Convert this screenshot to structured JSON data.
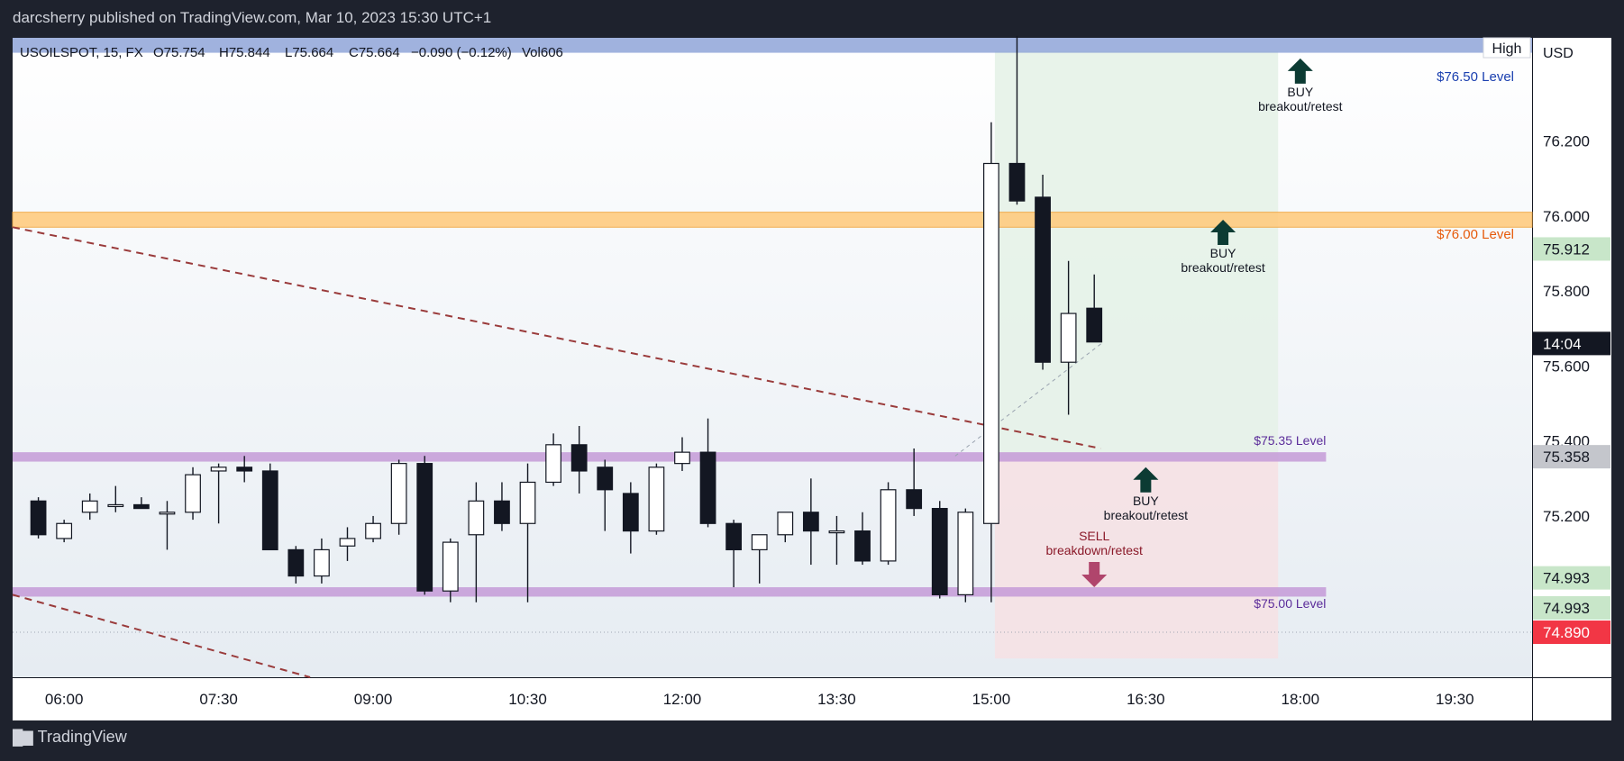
{
  "header": {
    "publisher_line": "darcsherry published on TradingView.com, Mar 10, 2023 15:30 UTC+1"
  },
  "footer": {
    "brand": "TradingView",
    "logo": "tradingview-logo-icon"
  },
  "legend": {
    "symbol": "USOILSPOT, 15, FX",
    "open": "O75.754",
    "high": "H75.844",
    "low": "L75.664",
    "close": "C75.664",
    "change": "−0.090 (−0.12%)",
    "volume": "Vol606"
  },
  "price_axis": {
    "currency": "USD",
    "high_label": "High"
  },
  "colors": {
    "bull_body": "#ffffff",
    "bear_body": "#131722",
    "wick": "#131722",
    "zone_orange": "#ffcc80",
    "zone_purple": "#c49ad7",
    "zone_blue": "#8fa4d8",
    "trend_line": "#9a3b3b",
    "arrow_green": "#0c3b33",
    "arrow_sell": "#b0456c",
    "label_blue": "#1a3faf",
    "label_orange": "#e65a0a",
    "label_purple": "#5b2c9a",
    "sell_text": "#8b1a2a",
    "projection_green": "#e6f2e8",
    "projection_red": "#f5e1e4"
  },
  "chart_data": {
    "type": "candlestick",
    "symbol": "USOILSPOT",
    "interval": "15",
    "y_range": [
      74.77,
      76.475
    ],
    "x_range": [
      "05:30",
      "20:15"
    ],
    "x_ticks": [
      "06:00",
      "07:30",
      "09:00",
      "10:30",
      "12:00",
      "13:30",
      "15:00",
      "16:30",
      "18:00",
      "19:30"
    ],
    "y_ticks": [
      76.2,
      76.0,
      75.8,
      75.6,
      75.4,
      75.2
    ],
    "candles": [
      {
        "t": "05:45",
        "o": 75.24,
        "h": 75.25,
        "l": 75.14,
        "c": 75.15
      },
      {
        "t": "06:00",
        "o": 75.14,
        "h": 75.19,
        "l": 75.13,
        "c": 75.18
      },
      {
        "t": "06:15",
        "o": 75.21,
        "h": 75.26,
        "l": 75.19,
        "c": 75.24
      },
      {
        "t": "06:30",
        "o": 75.23,
        "h": 75.28,
        "l": 75.21,
        "c": 75.23
      },
      {
        "t": "06:45",
        "o": 75.23,
        "h": 75.25,
        "l": 75.22,
        "c": 75.22
      },
      {
        "t": "07:00",
        "o": 75.21,
        "h": 75.24,
        "l": 75.11,
        "c": 75.21
      },
      {
        "t": "07:15",
        "o": 75.21,
        "h": 75.33,
        "l": 75.19,
        "c": 75.31
      },
      {
        "t": "07:30",
        "o": 75.32,
        "h": 75.34,
        "l": 75.18,
        "c": 75.33
      },
      {
        "t": "07:45",
        "o": 75.33,
        "h": 75.36,
        "l": 75.29,
        "c": 75.32
      },
      {
        "t": "08:00",
        "o": 75.32,
        "h": 75.34,
        "l": 75.11,
        "c": 75.11
      },
      {
        "t": "08:15",
        "o": 75.11,
        "h": 75.12,
        "l": 75.02,
        "c": 75.04
      },
      {
        "t": "08:30",
        "o": 75.04,
        "h": 75.14,
        "l": 75.02,
        "c": 75.11
      },
      {
        "t": "08:45",
        "o": 75.12,
        "h": 75.17,
        "l": 75.08,
        "c": 75.14
      },
      {
        "t": "09:00",
        "o": 75.14,
        "h": 75.2,
        "l": 75.13,
        "c": 75.18
      },
      {
        "t": "09:15",
        "o": 75.18,
        "h": 75.35,
        "l": 75.15,
        "c": 75.34
      },
      {
        "t": "09:30",
        "o": 75.34,
        "h": 75.36,
        "l": 74.99,
        "c": 75.0
      },
      {
        "t": "09:45",
        "o": 75.0,
        "h": 75.14,
        "l": 74.97,
        "c": 75.13
      },
      {
        "t": "10:00",
        "o": 75.15,
        "h": 75.29,
        "l": 74.97,
        "c": 75.24
      },
      {
        "t": "10:15",
        "o": 75.24,
        "h": 75.29,
        "l": 75.16,
        "c": 75.18
      },
      {
        "t": "10:30",
        "o": 75.18,
        "h": 75.34,
        "l": 74.97,
        "c": 75.29
      },
      {
        "t": "10:45",
        "o": 75.29,
        "h": 75.42,
        "l": 75.28,
        "c": 75.39
      },
      {
        "t": "11:00",
        "o": 75.39,
        "h": 75.44,
        "l": 75.26,
        "c": 75.32
      },
      {
        "t": "11:15",
        "o": 75.33,
        "h": 75.35,
        "l": 75.16,
        "c": 75.27
      },
      {
        "t": "11:30",
        "o": 75.26,
        "h": 75.29,
        "l": 75.1,
        "c": 75.16
      },
      {
        "t": "11:45",
        "o": 75.16,
        "h": 75.34,
        "l": 75.15,
        "c": 75.33
      },
      {
        "t": "12:00",
        "o": 75.34,
        "h": 75.41,
        "l": 75.32,
        "c": 75.37
      },
      {
        "t": "12:15",
        "o": 75.37,
        "h": 75.46,
        "l": 75.17,
        "c": 75.18
      },
      {
        "t": "12:30",
        "o": 75.18,
        "h": 75.19,
        "l": 75.01,
        "c": 75.11
      },
      {
        "t": "12:45",
        "o": 75.11,
        "h": 75.15,
        "l": 75.02,
        "c": 75.15
      },
      {
        "t": "13:00",
        "o": 75.15,
        "h": 75.21,
        "l": 75.13,
        "c": 75.21
      },
      {
        "t": "13:15",
        "o": 75.21,
        "h": 75.3,
        "l": 75.07,
        "c": 75.16
      },
      {
        "t": "13:30",
        "o": 75.16,
        "h": 75.2,
        "l": 75.07,
        "c": 75.16
      },
      {
        "t": "13:45",
        "o": 75.16,
        "h": 75.21,
        "l": 75.07,
        "c": 75.08
      },
      {
        "t": "14:00",
        "o": 75.08,
        "h": 75.29,
        "l": 75.07,
        "c": 75.27
      },
      {
        "t": "14:15",
        "o": 75.27,
        "h": 75.38,
        "l": 75.2,
        "c": 75.22
      },
      {
        "t": "14:30",
        "o": 75.22,
        "h": 75.24,
        "l": 74.98,
        "c": 74.99
      },
      {
        "t": "14:45",
        "o": 74.99,
        "h": 75.22,
        "l": 74.97,
        "c": 75.21
      },
      {
        "t": "15:00",
        "o": 75.18,
        "h": 76.25,
        "l": 74.97,
        "c": 76.14
      },
      {
        "t": "15:15",
        "o": 76.14,
        "h": 76.48,
        "l": 76.03,
        "c": 76.04
      },
      {
        "t": "15:30",
        "o": 76.05,
        "h": 76.11,
        "l": 75.59,
        "c": 75.61
      },
      {
        "t": "15:45",
        "o": 75.61,
        "h": 75.88,
        "l": 75.47,
        "c": 75.74
      },
      {
        "t": "16:00",
        "o": 75.754,
        "h": 75.844,
        "l": 75.664,
        "c": 75.664
      }
    ],
    "price_labels": [
      {
        "value": "75.912",
        "kind": "green"
      },
      {
        "value": "14:04",
        "kind": "dark"
      },
      {
        "value": "75.358",
        "kind": "gray"
      },
      {
        "value": "74.993",
        "kind": "green"
      },
      {
        "value": "74.993",
        "kind": "green"
      },
      {
        "value": "74.890",
        "kind": "red"
      }
    ],
    "level_labels": [
      {
        "text": "$76.50 Level",
        "price": 76.5,
        "kind": "blue"
      },
      {
        "text": "$76.00 Level",
        "price": 76.0,
        "kind": "orange"
      },
      {
        "text": "$75.35 Level",
        "price": 75.35,
        "kind": "purple"
      },
      {
        "text": "$75.00 Level",
        "price": 75.0,
        "kind": "purple"
      }
    ],
    "signals": [
      {
        "title": "BUY",
        "subtitle": "breakout/retest",
        "t": "18:00",
        "price": 76.42,
        "kind": "buy"
      },
      {
        "title": "BUY",
        "subtitle": "breakout/retest",
        "t": "17:15",
        "price": 75.99,
        "kind": "buy"
      },
      {
        "title": "BUY",
        "subtitle": "breakout/retest",
        "t": "16:30",
        "price": 75.33,
        "kind": "buy"
      },
      {
        "title": "SELL",
        "subtitle": "breakdown/retest",
        "t": "16:00",
        "price": 75.01,
        "kind": "sell"
      }
    ]
  }
}
